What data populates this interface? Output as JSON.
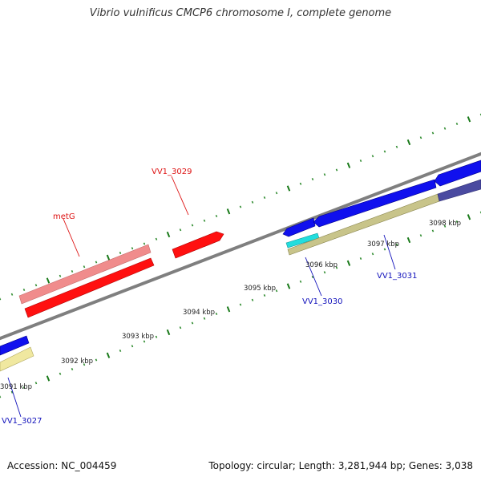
{
  "title": "Vibrio vulnificus CMCP6 chromosome I, complete genome",
  "footer": {
    "accession": "Accession: NC_004459",
    "summary": "Topology: circular; Length: 3,281,944 bp; Genes: 3,038"
  },
  "colors": {
    "backbone": "#7f7f7f",
    "tick_major": "#1a7a1a",
    "tick_minor": "#2e8b2e",
    "red_gene": "#ff1010",
    "pink_gene": "#f08c8c",
    "blue_gene": "#1010ee",
    "khaki_feature": "#c8c48a",
    "cyan_feature": "#22dddd",
    "purple_feature": "#4a4aa0",
    "label_red": "#dd1111",
    "label_blue": "#1111bb"
  },
  "scale_labels": [
    "3091 kbp",
    "3092 kbp",
    "3093 kbp",
    "3094 kbp",
    "3095 kbp",
    "3096 kbp",
    "3097 kbp",
    "3098 kbp"
  ],
  "gene_labels": [
    {
      "id": "metG",
      "text": "metG",
      "strand": "forward"
    },
    {
      "id": "vv1-3029",
      "text": "VV1_3029",
      "strand": "forward"
    },
    {
      "id": "vv1-3030",
      "text": "VV1_3030",
      "strand": "reverse"
    },
    {
      "id": "vv1-3031",
      "text": "VV1_3031",
      "strand": "reverse"
    },
    {
      "id": "vv1-3027",
      "text": "VV1_3027",
      "strand": "reverse"
    }
  ]
}
